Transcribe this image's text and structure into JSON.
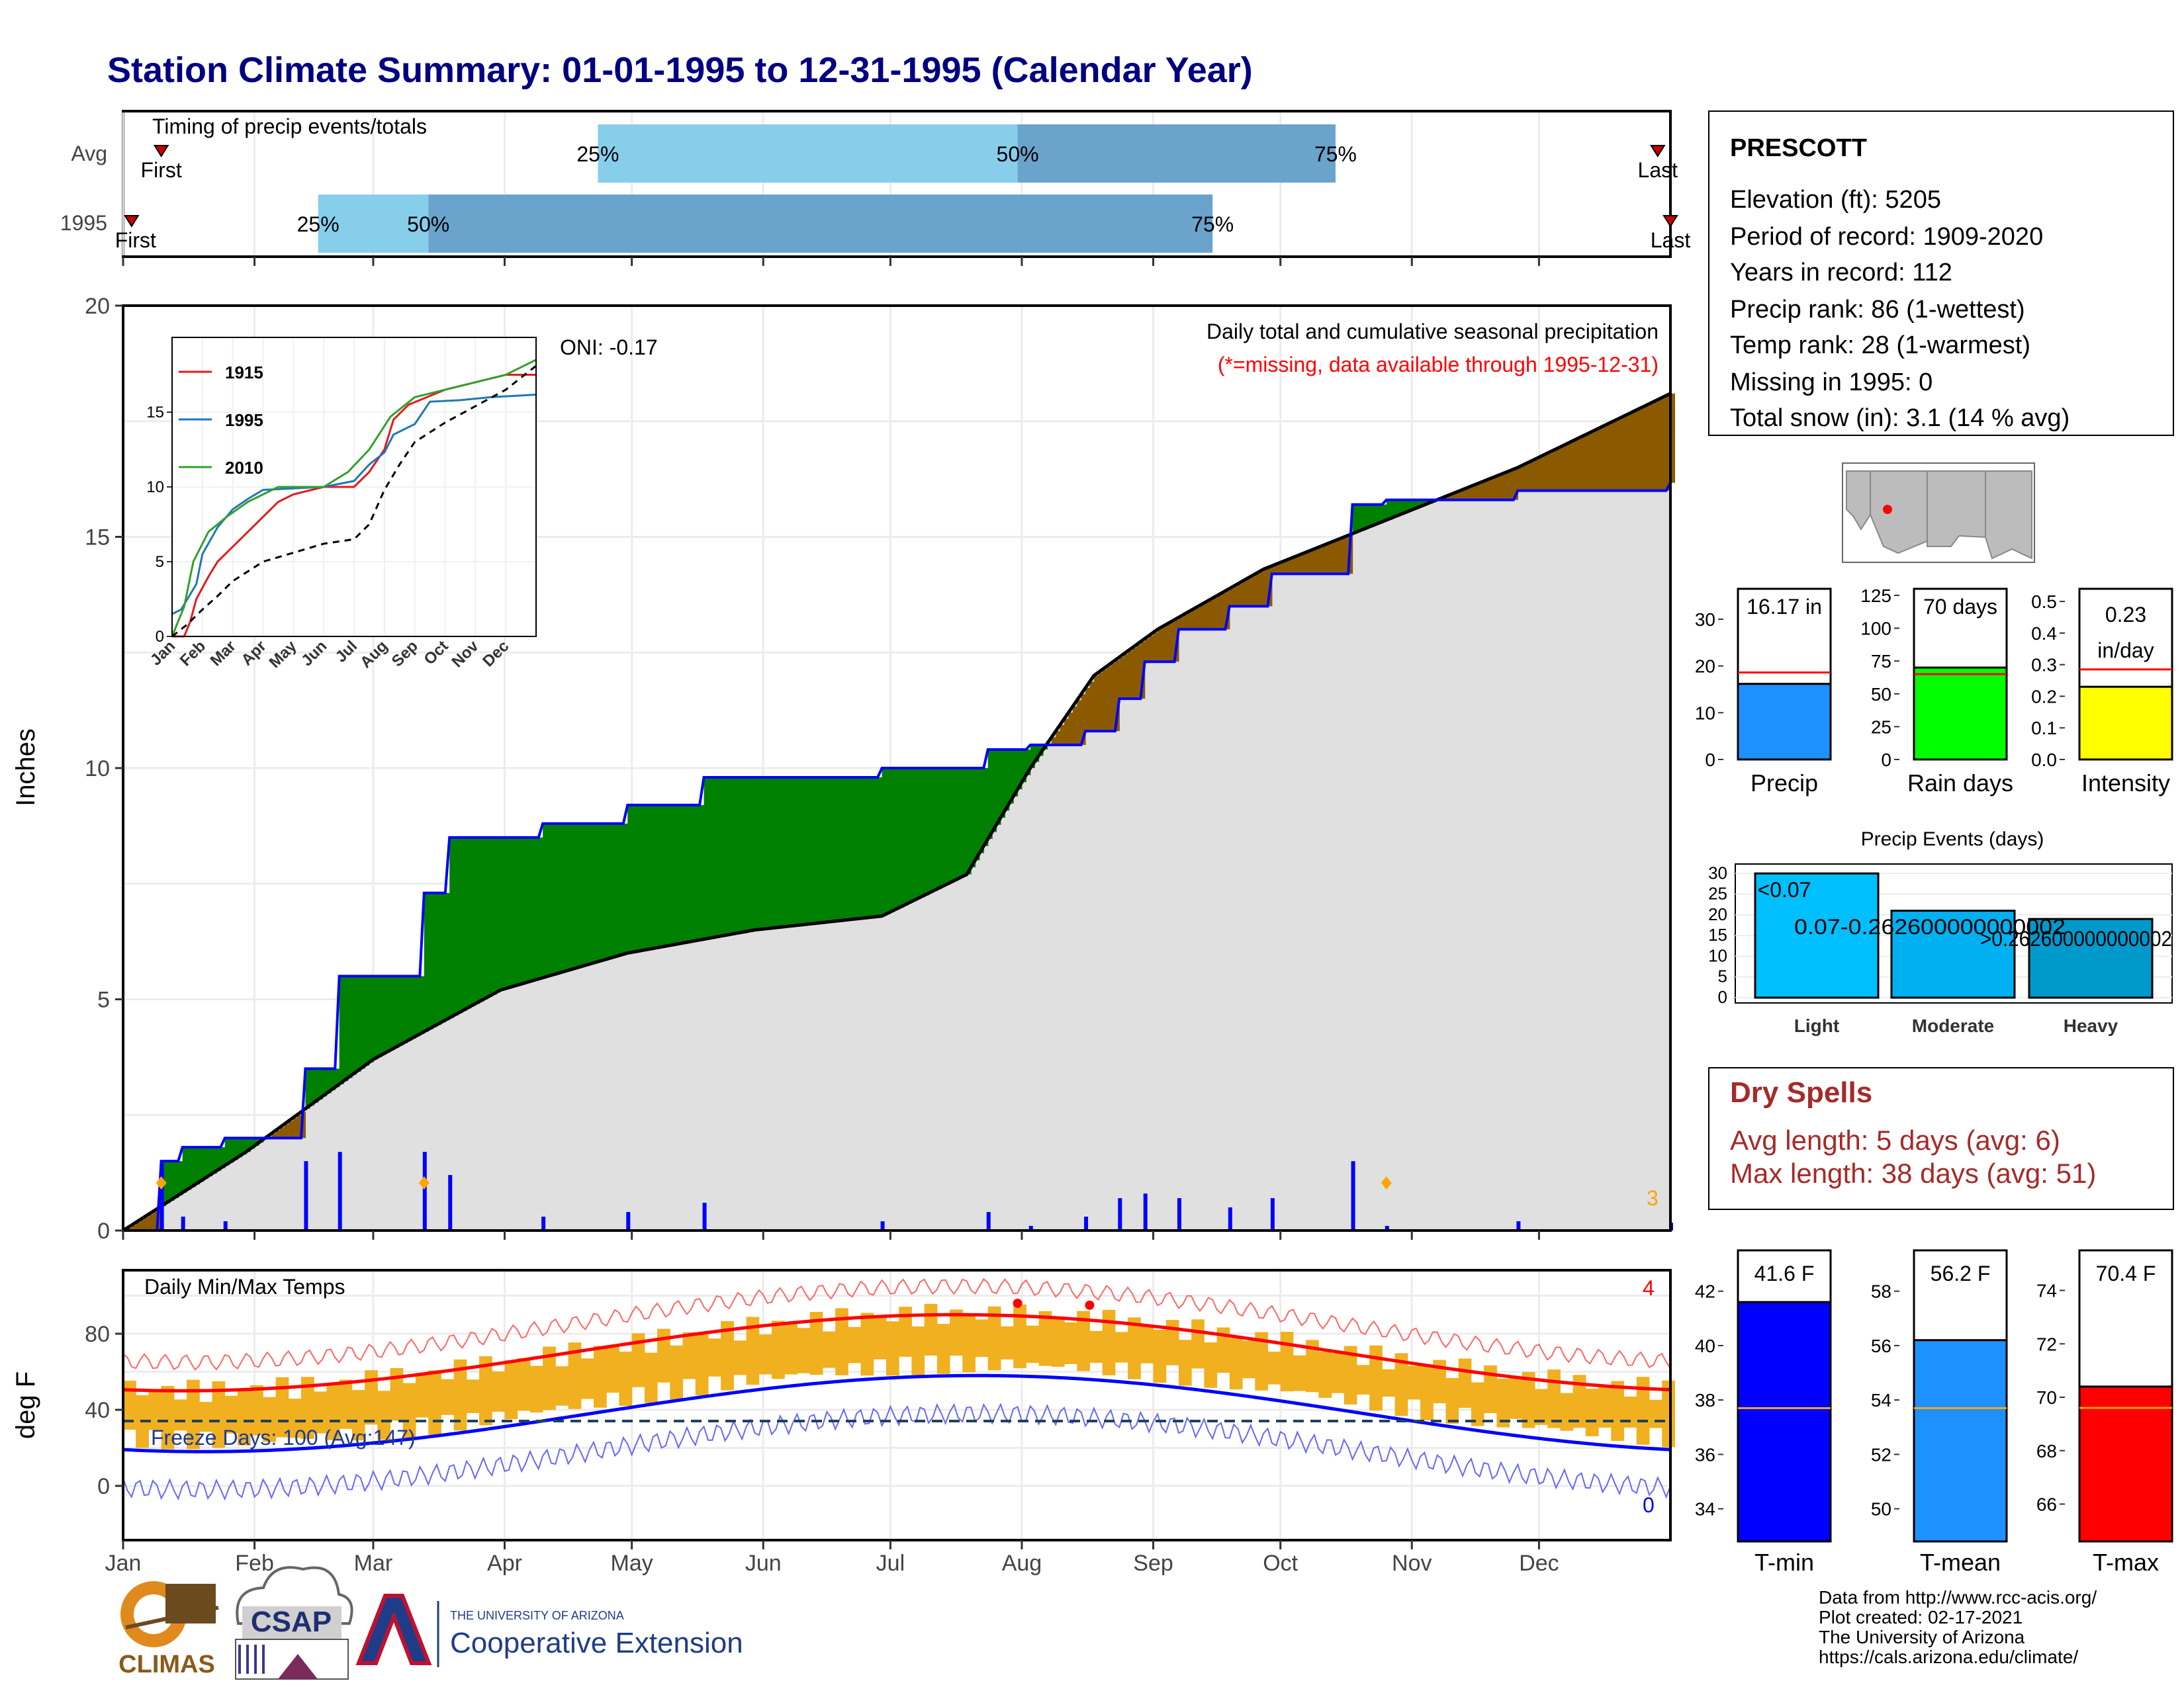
{
  "title": "Station Climate Summary: 01-01-1995 to 12-31-1995 (Calendar Year)",
  "months": [
    "Jan",
    "Feb",
    "Mar",
    "Apr",
    "May",
    "Jun",
    "Jul",
    "Aug",
    "Sep",
    "Oct",
    "Nov",
    "Dec"
  ],
  "colors": {
    "title": "#000080",
    "light_blue": "#87ceeb",
    "steel_blue": "#6aa3cc",
    "green": "#008000",
    "brown": "#8b5a00",
    "gray_fill": "#e0e0e0",
    "red": "#ff0000",
    "blue": "#0000ff",
    "orange": "#f0b020",
    "dry_red": "#a52a2a"
  },
  "timing_panel": {
    "label": "Timing of precip events/totals",
    "rows": [
      {
        "name": "Avg",
        "first_label": "First",
        "last_label": "Last",
        "first_day": 10,
        "p25": 113,
        "p50": 212,
        "p75": 287,
        "last_day": 363
      },
      {
        "name": "1995",
        "first_label": "First",
        "last_label": "Last",
        "first_day": 3,
        "p25": 47,
        "p50": 73,
        "p75": 258,
        "last_day": 366
      }
    ],
    "pct_labels": [
      "25%",
      "50%",
      "75%"
    ]
  },
  "precip_panel": {
    "ylabel": "Inches",
    "yticks": [
      "0",
      "5",
      "10",
      "15",
      "20"
    ],
    "ylim": [
      0,
      20
    ],
    "title_line1": "Daily total and cumulative seasonal precipitation",
    "title_line2": "(*=missing, data available through 1995-12-31)",
    "oni": "ONI: -0.17",
    "corner_count": "3"
  },
  "inset": {
    "yticks": [
      "0",
      "5",
      "10",
      "15"
    ],
    "legend": [
      "1915",
      "1995",
      "2010"
    ]
  },
  "temp_panel": {
    "ylabel": "deg F",
    "yticks": [
      "0",
      "40",
      "80"
    ],
    "label": "Daily Min/Max Temps",
    "freeze": "Freeze Days: 100 (Avg:147)",
    "top_count": "4",
    "bottom_count": "0"
  },
  "station": {
    "name": "PRESCOTT",
    "lines": [
      "Elevation (ft): 5205",
      "Period of record: 1909-2020",
      "Years in record: 112",
      "Precip rank: 86 (1-wettest)",
      "Temp rank: 28 (1-warmest)",
      "Missing in 1995: 0",
      "Total snow (in): 3.1 (14 % avg)"
    ]
  },
  "bars_precip": {
    "precip": {
      "label": "16.17 in",
      "xlabel": "Precip",
      "yticks": [
        "0",
        "10",
        "20",
        "30"
      ]
    },
    "rain_days": {
      "label": "70 days",
      "xlabel": "Rain days",
      "yticks": [
        "0",
        "25",
        "50",
        "75",
        "100",
        "125"
      ]
    },
    "intensity": {
      "label_line1": "0.23",
      "label_line2": "in/day",
      "xlabel": "Intensity",
      "yticks": [
        "0.0",
        "0.1",
        "0.2",
        "0.3",
        "0.4",
        "0.5"
      ]
    }
  },
  "events": {
    "title": "Precip Events (days)",
    "yticks": [
      "0",
      "5",
      "10",
      "15",
      "20",
      "25",
      "30"
    ],
    "bars": [
      {
        "cat": "Light",
        "label": "<0.07",
        "value": 30
      },
      {
        "cat": "Moderate",
        "label": "0.07-0.262600000000002",
        "value": 21
      },
      {
        "cat": "Heavy",
        "label": ">0.262600000000002",
        "value": 19
      }
    ]
  },
  "dry_spells": {
    "title": "Dry Spells",
    "line1": "Avg length: 5 days (avg: 6)",
    "line2": "Max length: 38 days (avg: 51)"
  },
  "temp_bars": [
    {
      "xlabel": "T-min",
      "label": "41.6 F",
      "yticks": [
        "34",
        "36",
        "38",
        "40",
        "42"
      ]
    },
    {
      "xlabel": "T-mean",
      "label": "56.2 F",
      "yticks": [
        "50",
        "52",
        "54",
        "56",
        "58"
      ]
    },
    {
      "xlabel": "T-max",
      "label": "70.4 F",
      "yticks": [
        "66",
        "68",
        "70",
        "72",
        "74"
      ]
    }
  ],
  "footer": {
    "lines": [
      "Data from http://www.rcc-acis.org/",
      "Plot created: 02-17-2021",
      "The University of Arizona",
      "https://cals.arizona.edu/climate/"
    ],
    "climas": "CLIMAS",
    "csap": "CSAP",
    "ua_small": "THE UNIVERSITY OF ARIZONA",
    "ua_big": "Cooperative Extension"
  },
  "chart_data": {
    "type": "area",
    "title": "Daily total and cumulative seasonal precipitation",
    "xlabel": "",
    "ylabel": "Inches",
    "ylim": [
      0,
      20
    ],
    "series": [
      {
        "name": "1995",
        "x": [
          1,
          10,
          15,
          25,
          44,
          52,
          72,
          78,
          100,
          120,
          138,
          180,
          205,
          215,
          228,
          236,
          242,
          250,
          262,
          272,
          291,
          299,
          330,
          366
        ],
        "values": [
          0.0,
          1.5,
          1.8,
          2.0,
          3.5,
          5.5,
          7.3,
          8.5,
          8.8,
          9.2,
          9.8,
          10.0,
          10.4,
          10.5,
          10.8,
          11.5,
          12.3,
          13.0,
          13.5,
          14.2,
          15.7,
          15.8,
          16.0,
          16.17
        ]
      },
      {
        "name": "Average",
        "x": [
          1,
          30,
          60,
          90,
          120,
          150,
          180,
          200,
          215,
          230,
          245,
          270,
          300,
          330,
          366
        ],
        "values": [
          0.0,
          1.7,
          3.7,
          5.2,
          6.0,
          6.5,
          6.8,
          7.7,
          10.0,
          12.0,
          13.0,
          14.3,
          15.4,
          16.5,
          18.1
        ]
      }
    ]
  }
}
